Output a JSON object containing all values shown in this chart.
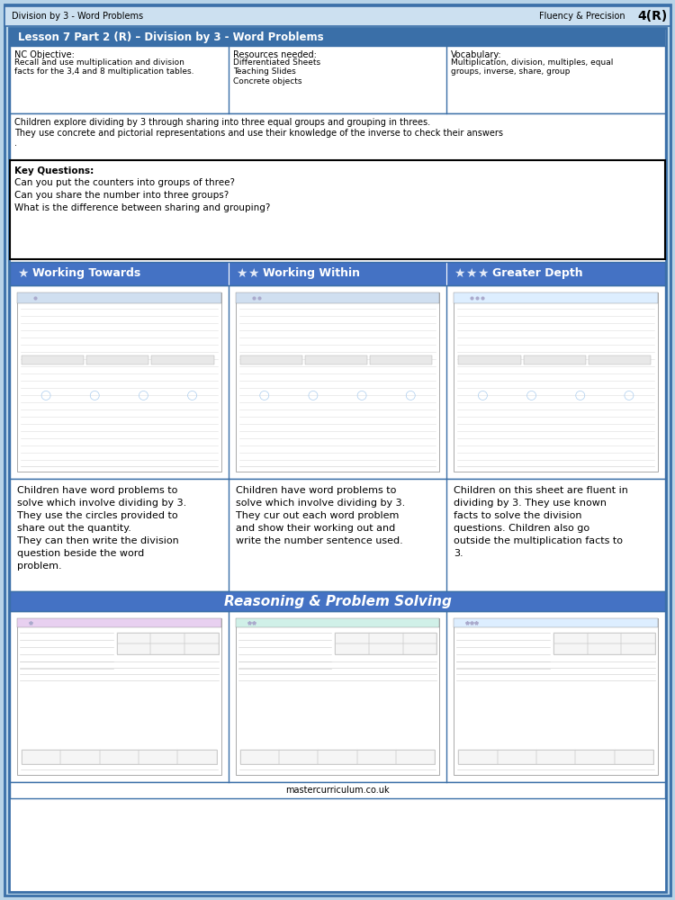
{
  "page_bg": "#b8d4e8",
  "header_bg": "#cce0f0",
  "header_left": "Division by 3 - Word Problems",
  "header_right": "Fluency & Precision",
  "header_grade": "4(R)",
  "outer_border_color": "#3a6fa8",
  "lesson_title": "Lesson 7 Part 2 (R) – Division by 3 - Word Problems",
  "lesson_title_bg": "#3a6fa8",
  "lesson_title_color": "white",
  "nc_objective_label": "NC Objective:",
  "nc_objective_text": "Recall and use multiplication and division\nfacts for the 3,4 and 8 multiplication tables.",
  "resources_label": "Resources needed:",
  "resources_text": "Differentiated Sheets\nTeaching Slides\nConcrete objects",
  "vocabulary_label": "Vocabulary:",
  "vocabulary_text": "Multiplication, division, multiples, equal\ngroups, inverse, share, group",
  "description_text": "Children explore dividing by 3 through sharing into three equal groups and grouping in threes.\nThey use concrete and pictorial representations and use their knowledge of the inverse to check their answers\n.",
  "key_questions_label": "Key Questions:",
  "key_questions": [
    "Can you put the counters into groups of three?",
    "Can you share the number into three groups?",
    "What is the difference between sharing and grouping?"
  ],
  "col_headers": [
    {
      "stars": 1,
      "label": "Working Towards"
    },
    {
      "stars": 2,
      "label": "Working Within"
    },
    {
      "stars": 3,
      "label": "Greater Depth"
    }
  ],
  "col_header_bg": "#4472c4",
  "col_header_color": "white",
  "desc_col1": "Children have word problems to\nsolve which involve dividing by 3.\nThey use the circles provided to\nshare out the quantity.\nThey can then write the division\nquestion beside the word\nproblem.",
  "desc_col2": "Children have word problems to\nsolve which involve dividing by 3.\nThey cur out each word problem\nand show their working out and\nwrite the number sentence used.",
  "desc_col3": "Children on this sheet are fluent in\ndividing by 3. They use known\nfacts to solve the division\nquestions. Children also go\noutside the multiplication facts to\n3.",
  "reasoning_header": "Reasoning & Problem Solving",
  "reasoning_header_bg": "#4472c4",
  "reasoning_header_color": "white",
  "footer_text": "mastercurriculum.co.uk",
  "inner_border_color": "#3a6fa8",
  "section_border_color": "#000000",
  "ws1_title_bg": "#d0dff0",
  "ws2_title_bg": "#d0dff0",
  "ws3_title_bg": "#ddeeff",
  "rps1_title_bg": "#e8d0f0",
  "rps2_title_bg": "#d0f0e8",
  "rps3_title_bg": "#ddeeff"
}
